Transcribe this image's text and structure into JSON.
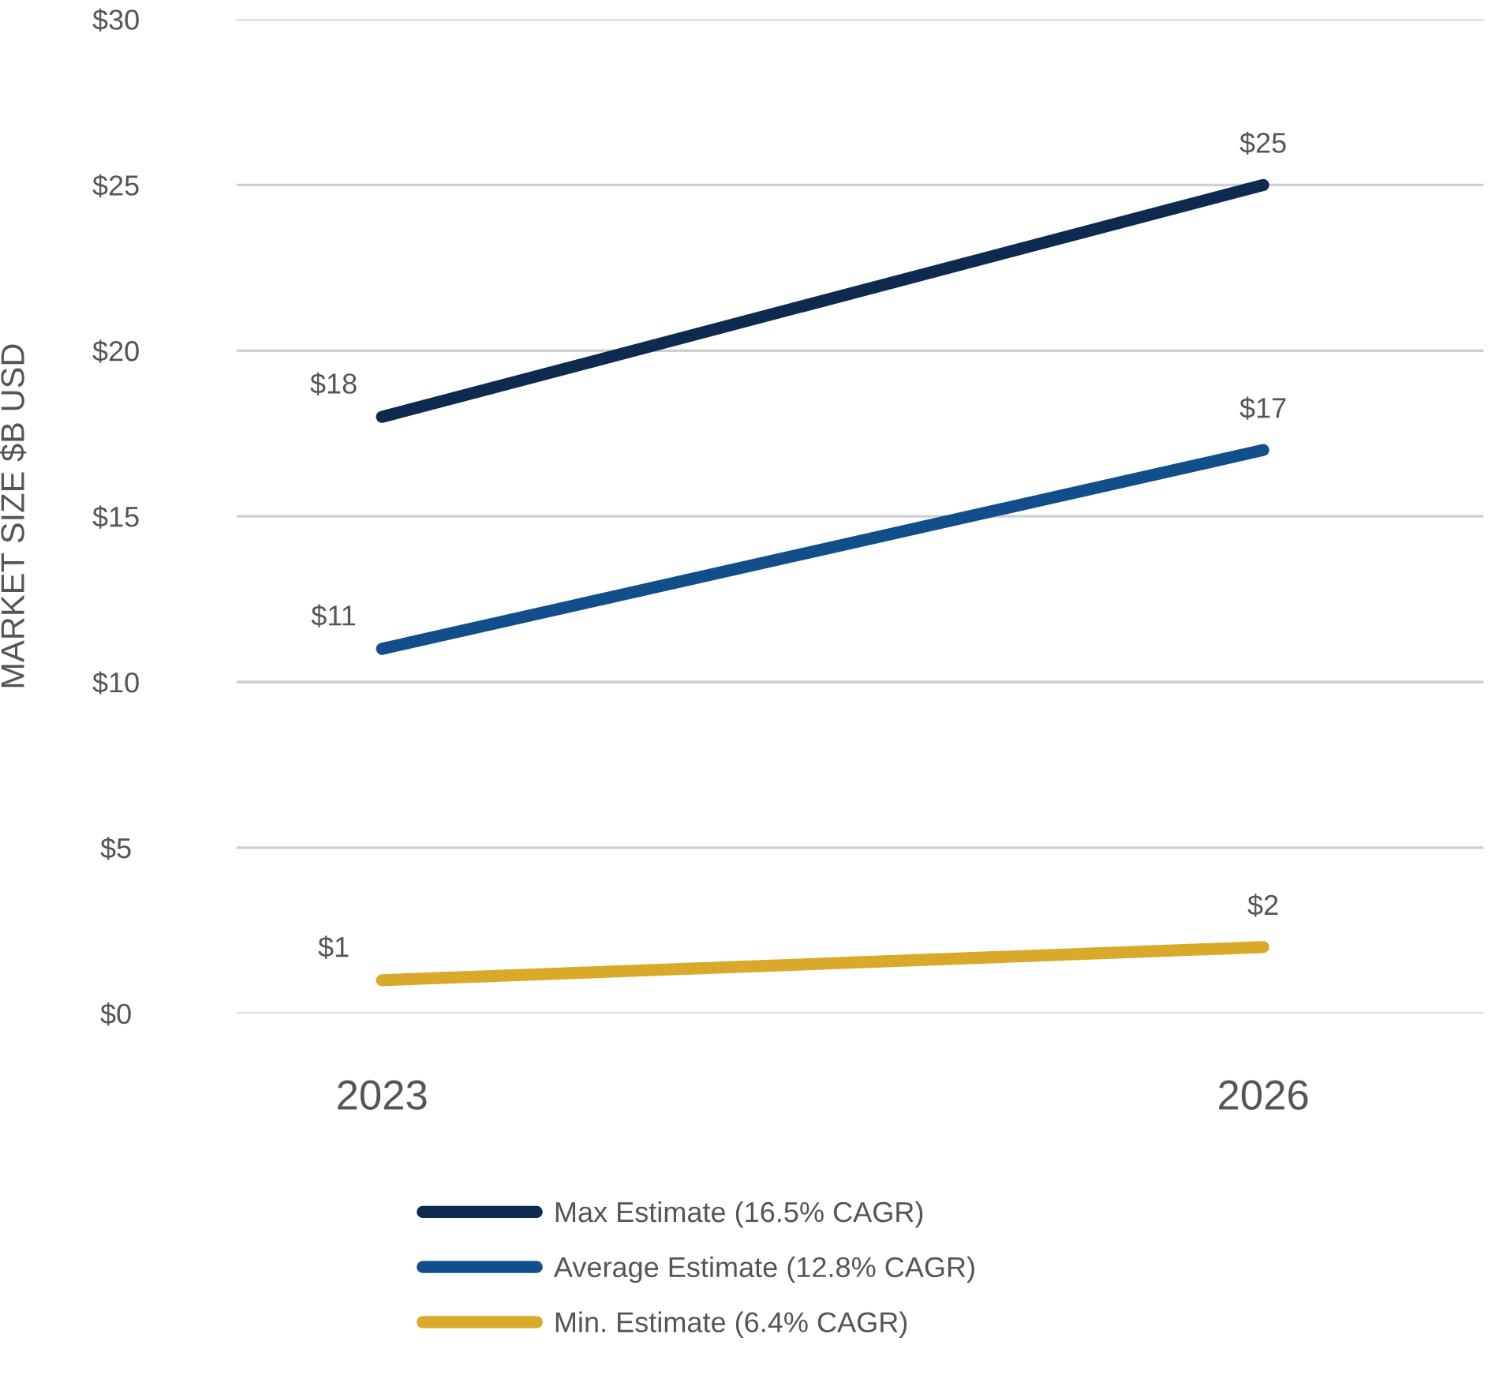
{
  "chart_data": {
    "type": "line",
    "ylabel": "MARKET SIZE $B USD",
    "categories": [
      "2023",
      "2026"
    ],
    "series": [
      {
        "name": "Max Estimate (16.5% CAGR)",
        "color": "#0f2a4f",
        "values": [
          18,
          25
        ],
        "value_labels": [
          "$18",
          "$25"
        ]
      },
      {
        "name": "Average Estimate (12.8% CAGR)",
        "color": "#114e8a",
        "values": [
          11,
          17
        ],
        "value_labels": [
          "$11",
          "$17"
        ]
      },
      {
        "name": "Min. Estimate (6.4% CAGR)",
        "color": "#d9a92a",
        "values": [
          1,
          2
        ],
        "value_labels": [
          "$1",
          "$2"
        ]
      }
    ],
    "ylim": [
      0,
      30
    ],
    "yticks": [
      {
        "value": 0,
        "label": "$0"
      },
      {
        "value": 5,
        "label": "$5"
      },
      {
        "value": 10,
        "label": "$10"
      },
      {
        "value": 15,
        "label": "$15"
      },
      {
        "value": 20,
        "label": "$20"
      },
      {
        "value": 25,
        "label": "$25"
      },
      {
        "value": 30,
        "label": "$30"
      }
    ],
    "grid": "y",
    "legend": "bottom",
    "marker": "none",
    "line_style": "solid"
  }
}
